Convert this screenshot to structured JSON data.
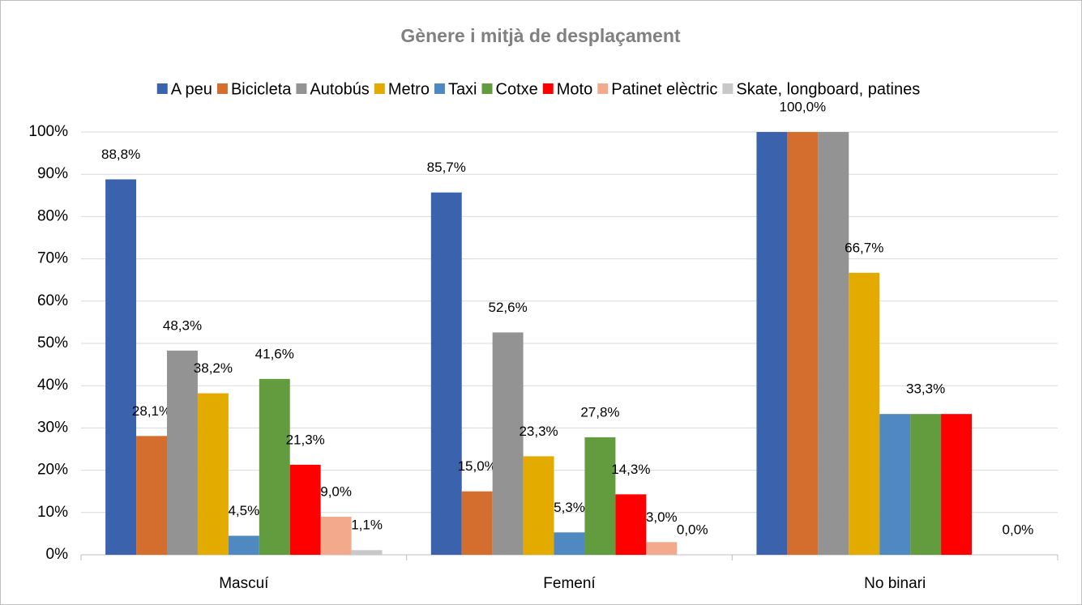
{
  "chart_data": {
    "type": "bar",
    "title": "Gènere i mitjà de desplaçament",
    "categories": [
      "Mascuí",
      "Femení",
      "No binari"
    ],
    "series": [
      {
        "name": "A peu",
        "color": "#3a62ad",
        "values": [
          88.8,
          85.7,
          100
        ],
        "value_labels": [
          "88,8%",
          "85,7%",
          null
        ]
      },
      {
        "name": "Bicicleta",
        "color": "#d36e2e",
        "values": [
          28.1,
          15.0,
          100
        ],
        "value_labels": [
          "28,1%",
          "15,0%",
          "100,0%"
        ]
      },
      {
        "name": "Autobús",
        "color": "#939393",
        "values": [
          48.3,
          52.6,
          100
        ],
        "value_labels": [
          "48,3%",
          "52,6%",
          null
        ]
      },
      {
        "name": "Metro",
        "color": "#e3ab00",
        "values": [
          38.2,
          23.3,
          66.7
        ],
        "value_labels": [
          "38,2%",
          "23,3%",
          "66,7%"
        ]
      },
      {
        "name": "Taxi",
        "color": "#5089c2",
        "values": [
          4.5,
          5.3,
          33.3
        ],
        "value_labels": [
          "4,5%",
          "5,3%",
          null
        ]
      },
      {
        "name": "Cotxe",
        "color": "#629c3f",
        "values": [
          41.6,
          27.8,
          33.3
        ],
        "value_labels": [
          "41,6%",
          "27,8%",
          "33,3%"
        ]
      },
      {
        "name": "Moto",
        "color": "#ff0000",
        "values": [
          21.3,
          14.3,
          33.3
        ],
        "value_labels": [
          "21,3%",
          "14,3%",
          null
        ]
      },
      {
        "name": "Patinet elèctric",
        "color": "#f2a98c",
        "values": [
          9.0,
          3.0,
          0
        ],
        "value_labels": [
          "9,0%",
          "3,0%",
          null
        ]
      },
      {
        "name": "Skate, longboard, patines",
        "color": "#c8c8c8",
        "values": [
          1.1,
          0.0,
          0
        ],
        "value_labels": [
          "1,1%",
          "0,0%",
          "0,0%"
        ]
      }
    ],
    "ylim": [
      0,
      100
    ],
    "yticks": [
      {
        "value": 0,
        "label": "0%"
      },
      {
        "value": 10,
        "label": "10%"
      },
      {
        "value": 20,
        "label": "20%"
      },
      {
        "value": 30,
        "label": "30%"
      },
      {
        "value": 40,
        "label": "40%"
      },
      {
        "value": 50,
        "label": "50%"
      },
      {
        "value": 60,
        "label": "60%"
      },
      {
        "value": 70,
        "label": "70%"
      },
      {
        "value": 80,
        "label": "80%"
      },
      {
        "value": 90,
        "label": "90%"
      },
      {
        "value": 100,
        "label": "100%"
      }
    ],
    "grid": true,
    "legend": "top"
  }
}
